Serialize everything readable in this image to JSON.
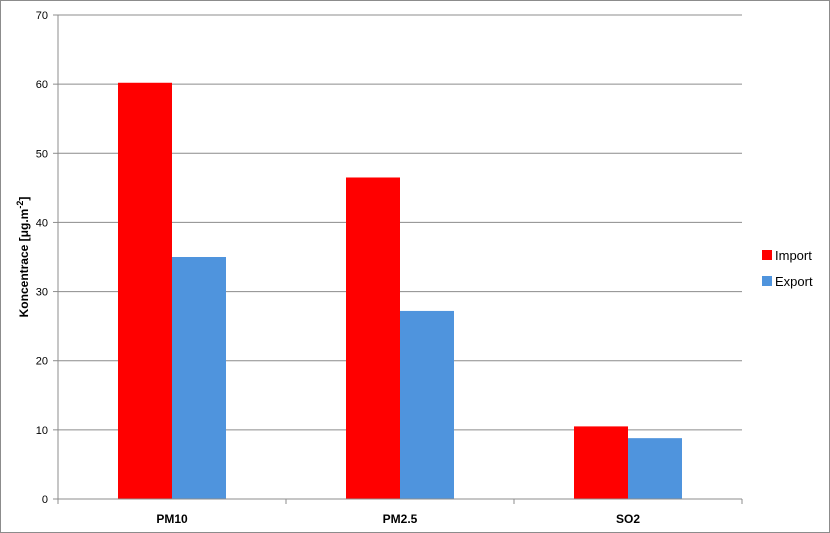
{
  "chart_data": {
    "type": "bar",
    "categories": [
      "PM10",
      "PM2.5",
      "SO2"
    ],
    "series": [
      {
        "name": "Import",
        "values": [
          60.2,
          46.5,
          10.5
        ],
        "color": "#ff0000"
      },
      {
        "name": "Export",
        "values": [
          35.0,
          27.2,
          8.8
        ],
        "color": "#4f94dd"
      }
    ],
    "ylabel": "Koncentrace [μg.m",
    "ylabel_sup": "-2",
    "ylabel_end": "]",
    "ylim": [
      0,
      70
    ],
    "yticks": [
      0,
      10,
      20,
      30,
      40,
      50,
      60,
      70
    ],
    "grid": true,
    "legend_position": "right"
  }
}
